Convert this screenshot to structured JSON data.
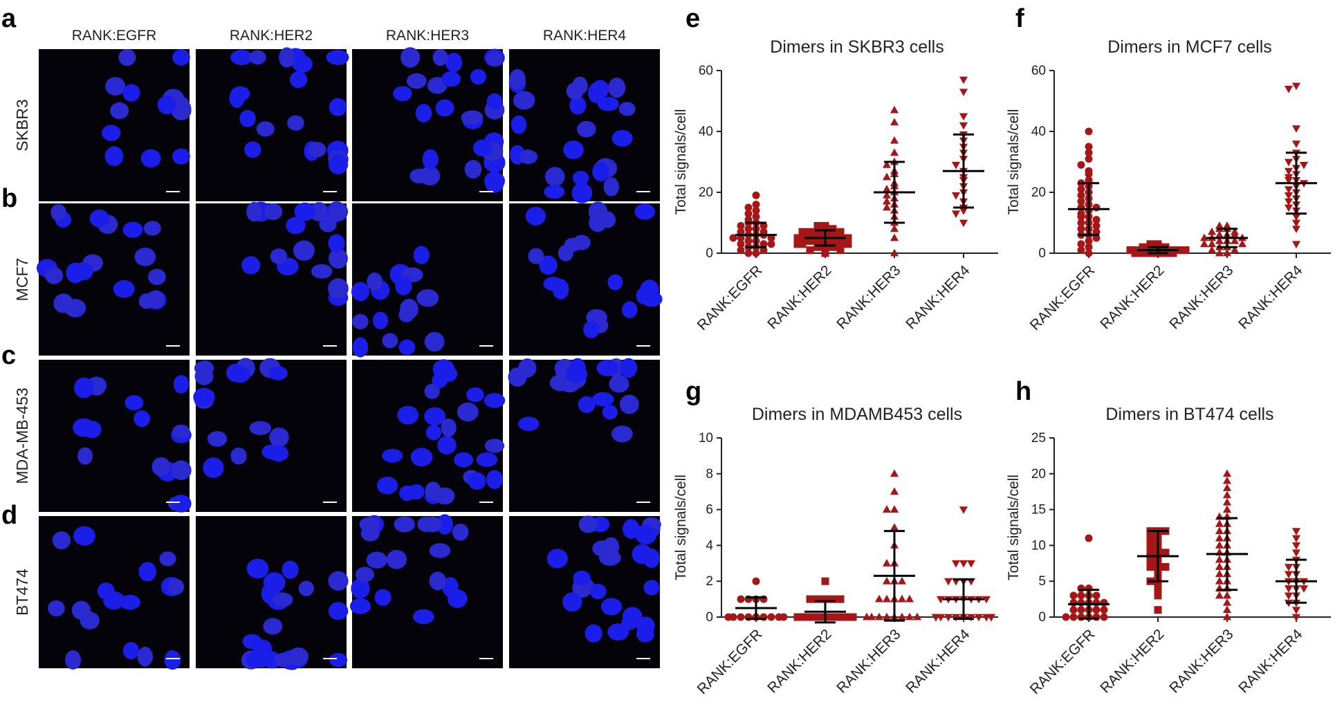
{
  "image_panels": {
    "columns": [
      "RANK:EGFR",
      "RANK:HER2",
      "RANK:HER3",
      "RANK:HER4"
    ],
    "rows": [
      {
        "letter": "a",
        "label": "SKBR3"
      },
      {
        "letter": "b",
        "label": "MCF7"
      },
      {
        "letter": "c",
        "label": "MDA-MB-453"
      },
      {
        "letter": "d",
        "label": "BT474"
      }
    ]
  },
  "chart_data": [
    {
      "letter": "e",
      "type": "dotplot",
      "title": "Dimers in SKBR3 cells",
      "y_label": "Total signals/cell",
      "color": "#a51616",
      "categories": [
        "RANK:EGFR",
        "RANK:HER2",
        "RANK:HER3",
        "RANK:HER4"
      ],
      "markers": [
        "circle",
        "square",
        "triangle-up",
        "triangle-down"
      ],
      "values": [
        [
          19,
          16,
          15,
          14,
          13,
          12,
          11,
          10,
          10,
          9,
          9,
          8,
          8,
          7,
          7,
          6,
          6,
          6,
          5,
          5,
          5,
          4,
          4,
          3,
          3,
          3,
          2,
          2,
          1,
          1,
          0,
          0
        ],
        [
          9,
          9,
          8,
          8,
          8,
          7,
          7,
          7,
          6,
          6,
          6,
          6,
          5,
          5,
          5,
          5,
          4,
          4,
          4,
          4,
          3,
          3,
          3,
          3,
          2,
          2,
          2,
          1,
          1,
          0
        ],
        [
          47,
          43,
          37,
          33,
          30,
          29,
          27,
          26,
          25,
          23,
          22,
          21,
          20,
          19,
          18,
          17,
          16,
          15,
          14,
          12,
          10,
          8,
          5,
          0
        ],
        [
          57,
          53,
          45,
          42,
          39,
          37,
          35,
          33,
          31,
          29,
          27,
          25,
          24,
          22,
          20,
          19,
          17,
          15,
          14,
          13,
          10
        ]
      ],
      "means": [
        6,
        5,
        20,
        27
      ],
      "sds": [
        4,
        2.5,
        10,
        12
      ],
      "ylim": [
        0,
        60
      ],
      "yticks": [
        0,
        20,
        40,
        60
      ]
    },
    {
      "letter": "f",
      "type": "dotplot",
      "title": "Dimers in MCF7 cells",
      "y_label": "Total signals/cell",
      "color": "#a51616",
      "categories": [
        "RANK:EGFR",
        "RANK:HER2",
        "RANK:HER3",
        "RANK:HER4"
      ],
      "markers": [
        "circle",
        "square",
        "triangle-up",
        "triangle-down"
      ],
      "values": [
        [
          40,
          35,
          33,
          31,
          29,
          27,
          26,
          24,
          23,
          22,
          21,
          20,
          19,
          18,
          17,
          16,
          15,
          15,
          14,
          13,
          12,
          12,
          11,
          10,
          10,
          9,
          8,
          8,
          7,
          6,
          6,
          5,
          4,
          3,
          2,
          1,
          0
        ],
        [
          3,
          3,
          2,
          2,
          2,
          2,
          1,
          1,
          1,
          1,
          1,
          1,
          0,
          0,
          0,
          0,
          0,
          0
        ],
        [
          9,
          9,
          8,
          8,
          7,
          7,
          6,
          6,
          6,
          5,
          5,
          5,
          4,
          4,
          4,
          3,
          3,
          3,
          2,
          2,
          1,
          1,
          0,
          0
        ],
        [
          55,
          54,
          41,
          36,
          33,
          31,
          30,
          29,
          28,
          27,
          26,
          25,
          24,
          24,
          23,
          22,
          21,
          20,
          19,
          18,
          17,
          16,
          15,
          14,
          12,
          10,
          8,
          3
        ]
      ],
      "means": [
        14.5,
        1,
        5,
        23
      ],
      "sds": [
        8.5,
        1,
        3,
        10
      ],
      "ylim": [
        0,
        60
      ],
      "yticks": [
        0,
        20,
        40,
        60
      ]
    },
    {
      "letter": "g",
      "type": "dotplot",
      "title": "Dimers in MDAMB453 cells",
      "y_label": "Total signals/cell",
      "color": "#a51616",
      "categories": [
        "RANK:EGFR",
        "RANK:HER2",
        "RANK:HER3",
        "RANK:HER4"
      ],
      "markers": [
        "circle",
        "square",
        "triangle-up",
        "triangle-down"
      ],
      "values": [
        [
          2,
          1,
          1,
          1,
          1,
          0,
          0,
          0,
          0,
          0,
          0,
          0,
          0,
          0
        ],
        [
          2,
          1,
          1,
          1,
          1,
          1,
          0,
          0,
          0,
          0,
          0,
          0,
          0,
          0,
          0,
          0
        ],
        [
          8,
          7,
          6,
          6,
          5,
          4,
          3,
          3,
          2,
          2,
          2,
          1,
          1,
          1,
          1,
          1,
          0,
          0,
          0,
          0,
          0,
          0,
          0,
          0
        ],
        [
          6,
          3,
          3,
          3,
          2,
          2,
          2,
          2,
          1,
          1,
          1,
          1,
          1,
          1,
          1,
          0,
          0,
          0,
          0,
          0,
          0,
          0,
          0,
          0,
          0,
          0,
          0
        ]
      ],
      "means": [
        0.5,
        0.3,
        2.3,
        1.0
      ],
      "sds": [
        0.6,
        0.6,
        2.5,
        1.1
      ],
      "ylim": [
        0,
        10
      ],
      "yticks": [
        0,
        2,
        4,
        6,
        8,
        10
      ]
    },
    {
      "letter": "h",
      "type": "dotplot",
      "title": "Dimers in BT474 cells",
      "y_label": "Total signals/cell",
      "color": "#a51616",
      "categories": [
        "RANK:EGFR",
        "RANK:HER2",
        "RANK:HER3",
        "RANK:HER4"
      ],
      "markers": [
        "circle",
        "square",
        "triangle-up",
        "triangle-down"
      ],
      "values": [
        [
          11,
          4,
          4,
          3,
          3,
          3,
          3,
          2,
          2,
          2,
          2,
          2,
          1,
          1,
          1,
          1,
          1,
          0,
          0,
          0,
          0,
          0,
          0
        ],
        [
          12,
          12,
          12,
          11,
          11,
          10,
          10,
          9,
          9,
          9,
          8,
          8,
          7,
          7,
          7,
          6,
          5,
          5,
          4,
          3,
          1
        ],
        [
          20,
          19,
          18,
          17,
          16,
          15,
          14,
          14,
          13,
          13,
          12,
          12,
          11,
          11,
          10,
          10,
          9,
          9,
          8,
          8,
          7,
          7,
          6,
          6,
          5,
          5,
          4,
          4,
          3,
          3,
          2,
          1,
          0
        ],
        [
          12,
          11,
          10,
          9,
          8,
          7,
          7,
          6,
          6,
          5,
          5,
          5,
          4,
          4,
          4,
          3,
          3,
          2,
          2,
          1,
          0
        ]
      ],
      "means": [
        1.8,
        8.5,
        8.8,
        5
      ],
      "sds": [
        2,
        3.5,
        5,
        3
      ],
      "ylim": [
        0,
        25
      ],
      "yticks": [
        0,
        5,
        10,
        15,
        20,
        25
      ]
    }
  ]
}
